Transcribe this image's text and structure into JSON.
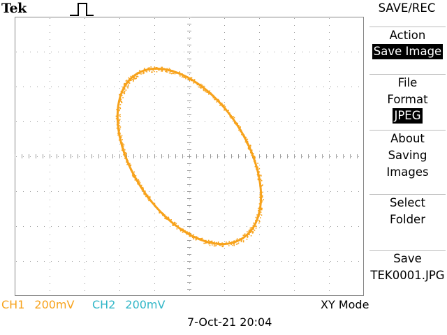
{
  "header": {
    "brand": "Tek",
    "trigger_icon": "pulse-trigger-icon"
  },
  "menu": {
    "title": "SAVE/REC",
    "action": {
      "label": "Action",
      "value": "Save Image"
    },
    "file_format": {
      "label_line1": "File",
      "label_line2": "Format",
      "value": "JPEG"
    },
    "about": {
      "line1": "About",
      "line2": "Saving",
      "line3": "Images"
    },
    "select_folder": {
      "line1": "Select",
      "line2": "Folder"
    },
    "save": {
      "line1": "Save",
      "line2": "TEK0001.JPG"
    }
  },
  "status": {
    "ch1_label": "CH1",
    "ch1_scale": "200mV",
    "ch2_label": "CH2",
    "ch2_scale": "200mV",
    "mode": "XY Mode",
    "datetime": "7-Oct-21 20:04"
  },
  "colors": {
    "trace": "#f7a21b",
    "ch1": "#f7a21b",
    "ch2": "#30b6c7",
    "grid": "#9a9a9a",
    "selection_bg": "#000000"
  }
}
